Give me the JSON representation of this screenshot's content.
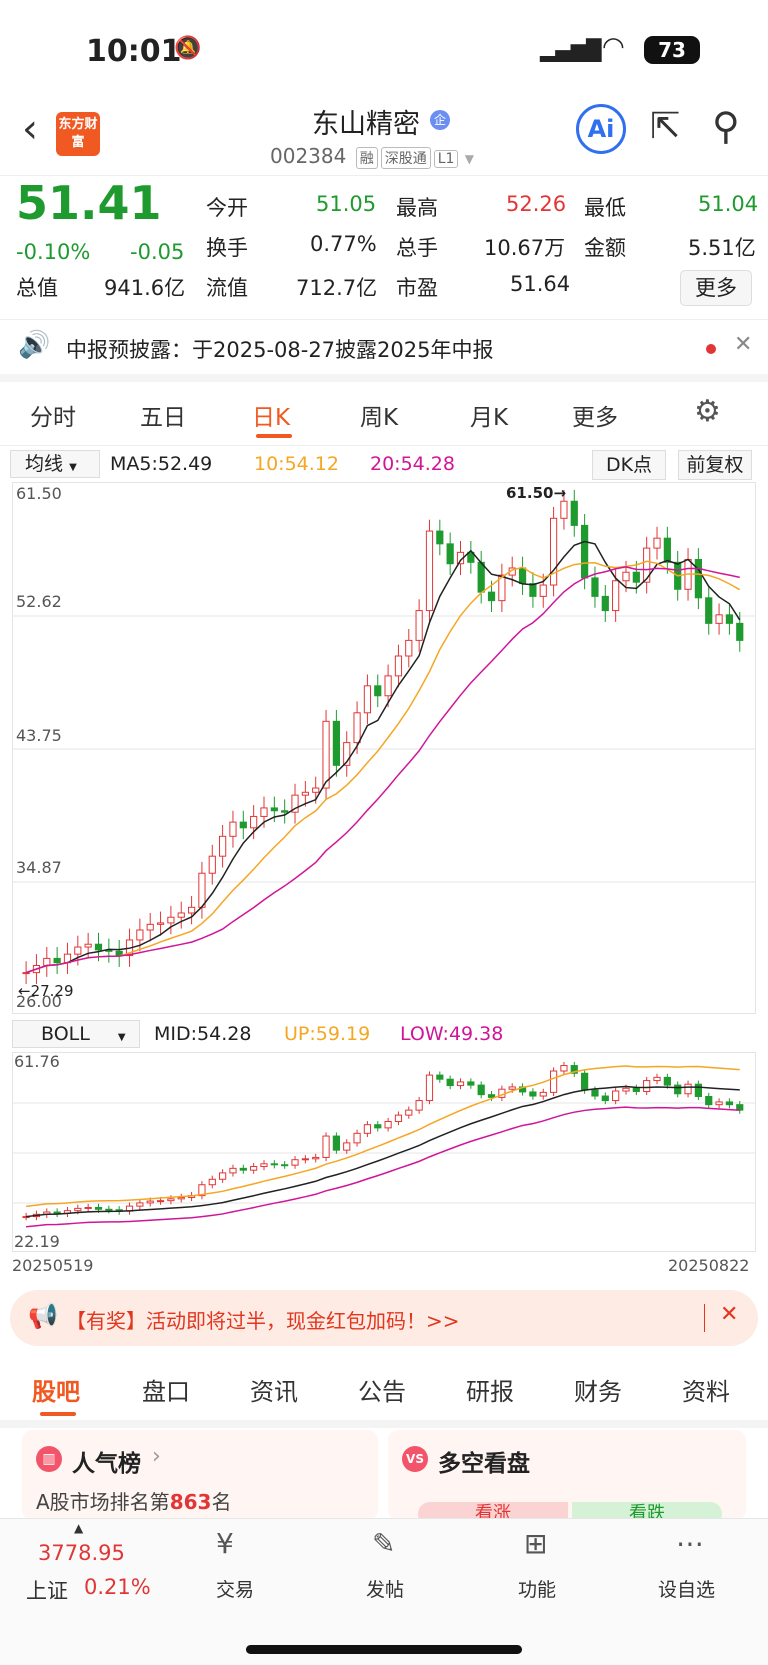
{
  "status": {
    "time": "10:01",
    "battery": "73"
  },
  "header": {
    "logo": "东方财富",
    "name": "东山精密",
    "code": "002384",
    "tags": [
      "融",
      "深股通",
      "L1"
    ]
  },
  "quote": {
    "price": "51.41",
    "pct": "-0.10%",
    "chg": "-0.05",
    "items": [
      {
        "k": "今开",
        "v": "51.05",
        "c": "green"
      },
      {
        "k": "最高",
        "v": "52.26",
        "c": "red"
      },
      {
        "k": "最低",
        "v": "51.04",
        "c": "green"
      },
      {
        "k": "换手",
        "v": "0.77%",
        "c": ""
      },
      {
        "k": "总手",
        "v": "10.67万",
        "c": ""
      },
      {
        "k": "金额",
        "v": "5.51亿",
        "c": ""
      },
      {
        "k": "总值",
        "v": "941.6亿",
        "c": ""
      },
      {
        "k": "流值",
        "v": "712.7亿",
        "c": ""
      },
      {
        "k": "市盈",
        "v": "51.64",
        "c": ""
      }
    ],
    "more": "更多"
  },
  "notice": "中报预披露：于2025-08-27披露2025年中报",
  "tabs": [
    "分时",
    "五日",
    "日K",
    "周K",
    "月K",
    "更多"
  ],
  "ma": {
    "select": "均线",
    "ma5": "MA5:52.49",
    "ma10": "10:54.12",
    "ma20": "20:54.28",
    "dk": "DK点",
    "fq": "前复权"
  },
  "main_axis": [
    "61.50",
    "52.62",
    "43.75",
    "34.87",
    "26.00"
  ],
  "annotations": {
    "high": "61.50→",
    "low": "←27.29"
  },
  "boll": {
    "select": "BOLL",
    "mid": "MID:54.28",
    "up": "UP:59.19",
    "low": "LOW:49.38",
    "ymax": "61.76",
    "ymin": "22.19",
    "start": "20250519",
    "end": "20250822"
  },
  "banner": "【有奖】活动即将过半，现金红包加码！>>",
  "subtabs": [
    "股吧",
    "盘口",
    "资讯",
    "公告",
    "研报",
    "财务",
    "资料"
  ],
  "cards": {
    "rank": "人气榜",
    "rank_text": "A股市场排名第",
    "rank_num": "863",
    "rank_suffix": "名",
    "duokong": "多空看盘",
    "up": "看涨",
    "down": "看跌"
  },
  "bottom": {
    "index": "3778.95",
    "index_name": "上证",
    "index_pct": "0.21%",
    "items": [
      "交易",
      "发帖",
      "功能",
      "设自选"
    ]
  },
  "chart_data": {
    "type": "candlestick",
    "start": "20250519",
    "end": "20250822",
    "ylim": [
      26.0,
      61.5
    ],
    "high_mark": 61.5,
    "low_mark": 27.29,
    "closes": [
      28,
      28.5,
      29,
      28.7,
      29.3,
      29.8,
      30,
      29.6,
      29.5,
      29.2,
      30.3,
      31,
      31.4,
      31.5,
      31.9,
      32.2,
      32.6,
      35,
      36.2,
      37.6,
      38.6,
      38.2,
      39,
      39.6,
      39.4,
      39.3,
      40.5,
      40.7,
      41,
      45.7,
      42.6,
      44.2,
      46.3,
      48.2,
      47.5,
      48.9,
      50.3,
      51.4,
      53.5,
      59.1,
      58.2,
      56.8,
      57.6,
      56.9,
      54.8,
      54.2,
      56,
      56.5,
      55.4,
      54.5,
      55.3,
      60,
      61.2,
      59.5,
      55.8,
      54.5,
      53.5,
      55.6,
      56.2,
      55.5,
      57.9,
      58.6,
      56.9,
      55,
      57.1,
      54.4,
      52.6,
      53.2,
      52.6,
      51.4
    ]
  }
}
